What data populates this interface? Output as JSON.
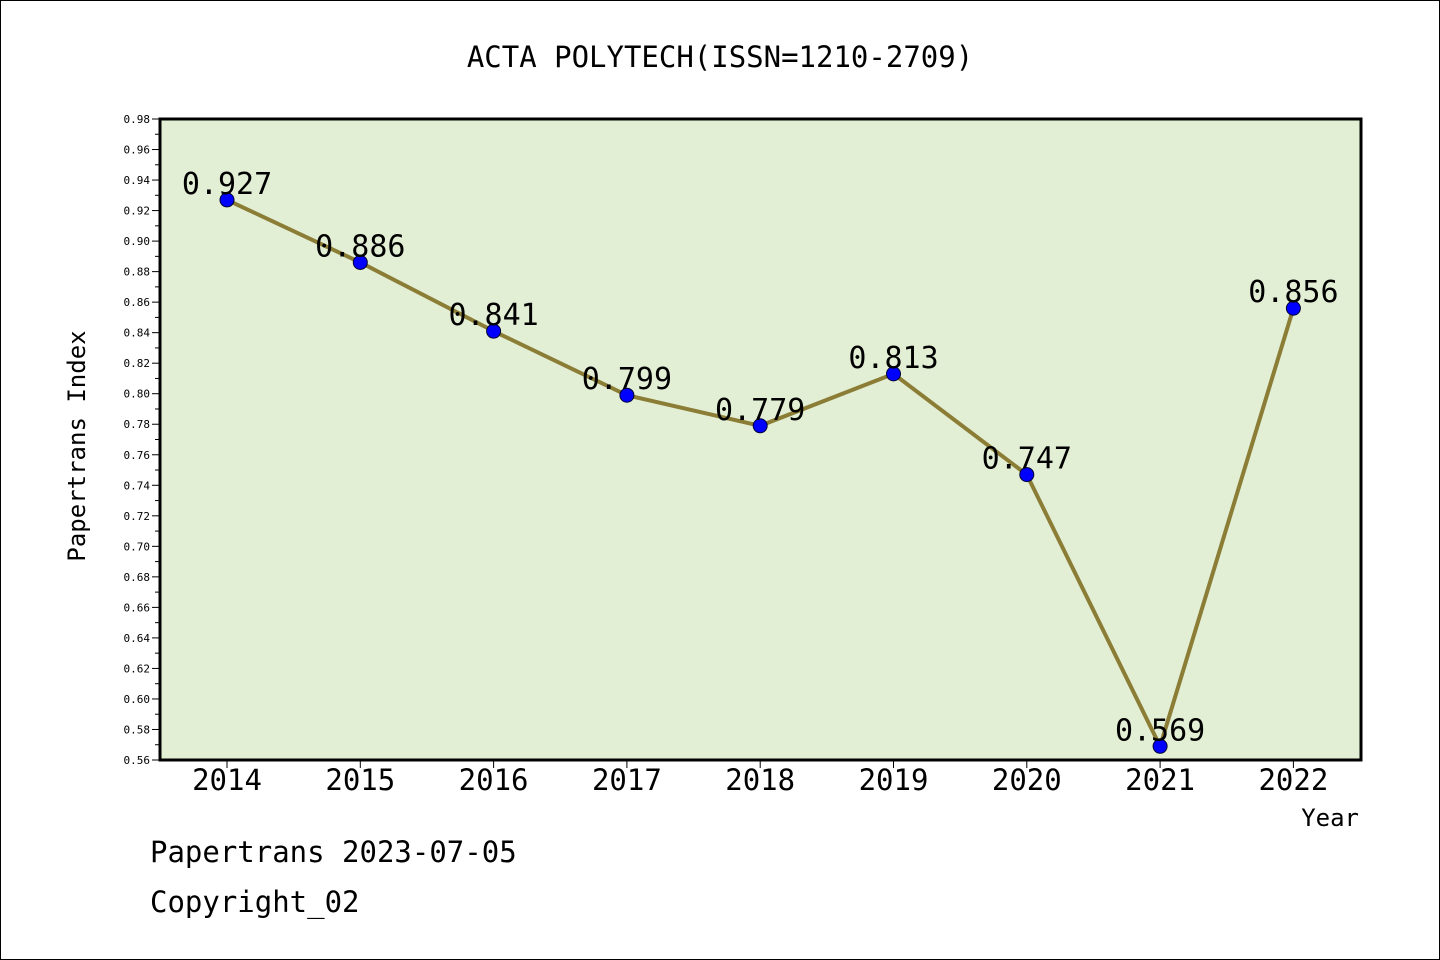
{
  "chart_data": {
    "type": "line",
    "title": "ACTA POLYTECH(ISSN=1210-2709)",
    "xlabel": "Year",
    "ylabel": "Papertrans Index",
    "categories": [
      "2014",
      "2015",
      "2016",
      "2017",
      "2018",
      "2019",
      "2020",
      "2021",
      "2022"
    ],
    "series": [
      {
        "values": [
          0.927,
          0.886,
          0.841,
          0.799,
          0.779,
          0.813,
          0.747,
          0.569,
          0.856
        ],
        "data_labels": [
          "0.927",
          "0.886",
          "0.841",
          "0.799",
          "0.779",
          "0.813",
          "0.747",
          "0.569",
          "0.856"
        ]
      }
    ],
    "ylim": [
      0.56,
      0.98
    ],
    "y_ticks": [
      "0.56",
      "0.58",
      "0.60",
      "0.62",
      "0.64",
      "0.66",
      "0.68",
      "0.70",
      "0.72",
      "0.74",
      "0.76",
      "0.78",
      "0.80",
      "0.82",
      "0.84",
      "0.86",
      "0.88",
      "0.90",
      "0.92",
      "0.94",
      "0.96",
      "0.98"
    ],
    "grid": false,
    "colors": {
      "plot_background": "#e2efd5",
      "line": "#8b7d35",
      "marker": "#0000ff"
    }
  },
  "footer": {
    "date_text": "Papertrans 2023-07-05",
    "copyright_text": "Copyright_02"
  }
}
